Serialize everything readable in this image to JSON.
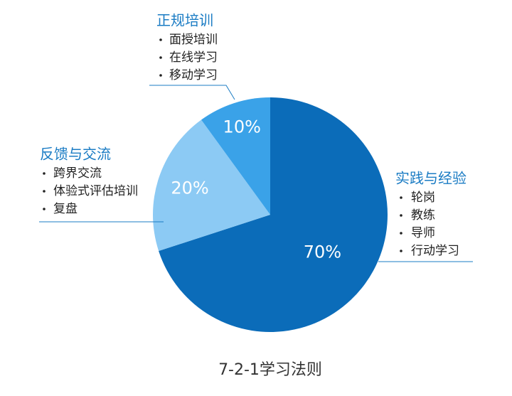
{
  "chart_data": {
    "type": "pie",
    "title": "7-2-1学习法则",
    "categories": [
      "实践与经验",
      "反馈与交流",
      "正规培训"
    ],
    "values": [
      70,
      20,
      10
    ],
    "value_labels": [
      "70%",
      "20%",
      "10%"
    ],
    "colors": [
      "#0b6cb9",
      "#8ccaf4",
      "#3aa2e8"
    ],
    "details": [
      [
        "轮岗",
        "教练",
        "导师",
        "行动学习"
      ],
      [
        "跨界交流",
        "体验式评估培训",
        "复盘"
      ],
      [
        "面授培训",
        "在线学习",
        "移动学习"
      ]
    ]
  }
}
